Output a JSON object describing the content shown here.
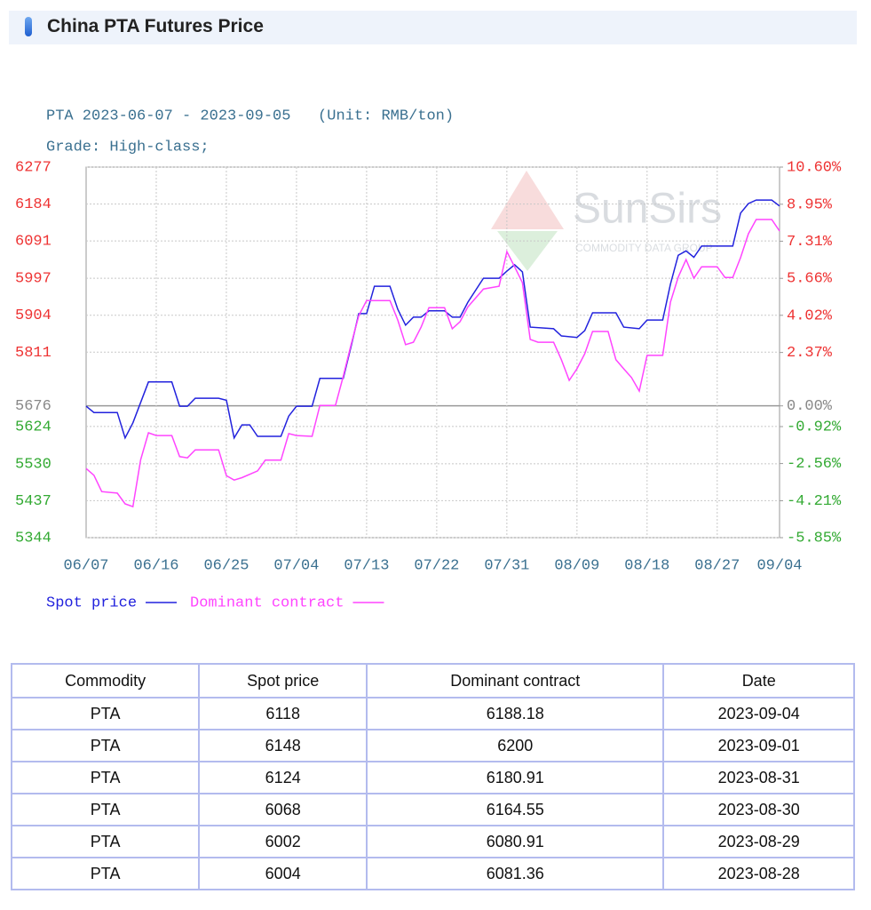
{
  "header": {
    "title": "China PTA Futures Price"
  },
  "chart_data": {
    "type": "line",
    "title": "PTA 2023-06-07 - 2023-09-05   (Unit: RMB/ton)",
    "subtitle": "Grade: High-class;",
    "watermark": "SunSirs",
    "watermark_sub": "COMMODITY DATA GROUP",
    "xlim": [
      "06/07",
      "09/04"
    ],
    "xticks": [
      "06/07",
      "06/16",
      "06/25",
      "07/04",
      "07/13",
      "07/22",
      "07/31",
      "08/09",
      "08/18",
      "08/27",
      "09/04"
    ],
    "ylim": [
      5344,
      6277
    ],
    "yticks": [
      6277,
      6184,
      6091,
      5997,
      5904,
      5811,
      5676,
      5624,
      5530,
      5437,
      5344
    ],
    "baseline": 5676,
    "y2lim": [
      -5.85,
      10.6
    ],
    "y2ticks": [
      {
        "value": 10.6,
        "label": "10.60%"
      },
      {
        "value": 8.95,
        "label": "8.95%"
      },
      {
        "value": 7.31,
        "label": "7.31%"
      },
      {
        "value": 5.66,
        "label": "5.66%"
      },
      {
        "value": 4.02,
        "label": "4.02%"
      },
      {
        "value": 2.37,
        "label": "2.37%"
      },
      {
        "value": 0,
        "label": "0.00%"
      },
      {
        "value": -0.92,
        "label": "-0.92%"
      },
      {
        "value": -2.56,
        "label": "-2.56%"
      },
      {
        "value": -4.21,
        "label": "-4.21%"
      },
      {
        "value": -5.85,
        "label": "-5.85%"
      }
    ],
    "grid": true,
    "series": [
      {
        "name": "Spot price",
        "color": "#2222dd",
        "x": [
          "06/07",
          "06/08",
          "06/11",
          "06/12",
          "06/13",
          "06/15",
          "06/18",
          "06/19",
          "06/20",
          "06/21",
          "06/24",
          "06/25",
          "06/26",
          "06/27",
          "06/28",
          "06/29",
          "07/02",
          "07/03",
          "07/04",
          "07/06",
          "07/07",
          "07/10",
          "07/11",
          "07/12",
          "07/13",
          "07/14",
          "07/16",
          "07/17",
          "07/18",
          "07/19",
          "07/20",
          "07/21",
          "07/23",
          "07/24",
          "07/25",
          "07/26",
          "07/28",
          "07/30",
          "07/31",
          "08/01",
          "08/02",
          "08/03",
          "08/06",
          "08/07",
          "08/09",
          "08/10",
          "08/11",
          "08/14",
          "08/15",
          "08/17",
          "08/18",
          "08/20",
          "08/21",
          "08/22",
          "08/23",
          "08/24",
          "08/25",
          "08/29",
          "08/30",
          "08/31",
          "09/01",
          "09/03",
          "09/04"
        ],
        "values": [
          5675,
          5659,
          5659,
          5595,
          5633,
          5736,
          5736,
          5675,
          5675,
          5695,
          5695,
          5690,
          5595,
          5628,
          5628,
          5599,
          5599,
          5650,
          5675,
          5675,
          5745,
          5745,
          5825,
          5908,
          5908,
          5977,
          5977,
          5919,
          5879,
          5899,
          5899,
          5915,
          5915,
          5899,
          5899,
          5937,
          5997,
          5997,
          6015,
          6031,
          6013,
          5874,
          5870,
          5852,
          5848,
          5865,
          5910,
          5910,
          5874,
          5870,
          5892,
          5892,
          5982,
          6055,
          6066,
          6050,
          6078,
          6078,
          6161,
          6185,
          6194,
          6194,
          6179
        ]
      },
      {
        "name": "Dominant contract",
        "color": "#ff44ff",
        "x": [
          "06/07",
          "06/08",
          "06/09",
          "06/11",
          "06/12",
          "06/13",
          "06/14",
          "06/15",
          "06/16",
          "06/18",
          "06/19",
          "06/20",
          "06/21",
          "06/24",
          "06/25",
          "06/26",
          "06/27",
          "06/29",
          "06/30",
          "07/02",
          "07/03",
          "07/04",
          "07/06",
          "07/07",
          "07/09",
          "07/10",
          "07/11",
          "07/12",
          "07/13",
          "07/16",
          "07/17",
          "07/18",
          "07/19",
          "07/20",
          "07/21",
          "07/23",
          "07/24",
          "07/25",
          "07/26",
          "07/28",
          "07/30",
          "07/31",
          "08/01",
          "08/02",
          "08/03",
          "08/04",
          "08/06",
          "08/07",
          "08/08",
          "08/09",
          "08/10",
          "08/11",
          "08/13",
          "08/14",
          "08/15",
          "08/16",
          "08/17",
          "08/18",
          "08/20",
          "08/21",
          "08/22",
          "08/23",
          "08/24",
          "08/25",
          "08/27",
          "08/28",
          "08/29",
          "08/30",
          "08/31",
          "09/01",
          "09/03",
          "09/04"
        ],
        "values": [
          5518,
          5501,
          5460,
          5456,
          5429,
          5422,
          5540,
          5608,
          5601,
          5601,
          5548,
          5545,
          5565,
          5565,
          5500,
          5489,
          5495,
          5512,
          5539,
          5539,
          5606,
          5601,
          5599,
          5677,
          5677,
          5750,
          5830,
          5903,
          5941,
          5941,
          5892,
          5830,
          5836,
          5874,
          5923,
          5923,
          5870,
          5888,
          5925,
          5970,
          5977,
          6064,
          6026,
          5986,
          5843,
          5836,
          5836,
          5792,
          5740,
          5769,
          5807,
          5863,
          5863,
          5792,
          5769,
          5747,
          5713,
          5803,
          5803,
          5937,
          6000,
          6044,
          5997,
          6026,
          6026,
          5999,
          5999,
          6049,
          6109,
          6145,
          6145,
          6116
        ]
      }
    ]
  },
  "table": {
    "columns": [
      "Commodity",
      "Spot price",
      "Dominant contract",
      "Date"
    ],
    "rows": [
      [
        "PTA",
        "6118",
        "6188.18",
        "2023-09-04"
      ],
      [
        "PTA",
        "6148",
        "6200",
        "2023-09-01"
      ],
      [
        "PTA",
        "6124",
        "6180.91",
        "2023-08-31"
      ],
      [
        "PTA",
        "6068",
        "6164.55",
        "2023-08-30"
      ],
      [
        "PTA",
        "6002",
        "6080.91",
        "2023-08-29"
      ],
      [
        "PTA",
        "6004",
        "6081.36",
        "2023-08-28"
      ]
    ]
  }
}
